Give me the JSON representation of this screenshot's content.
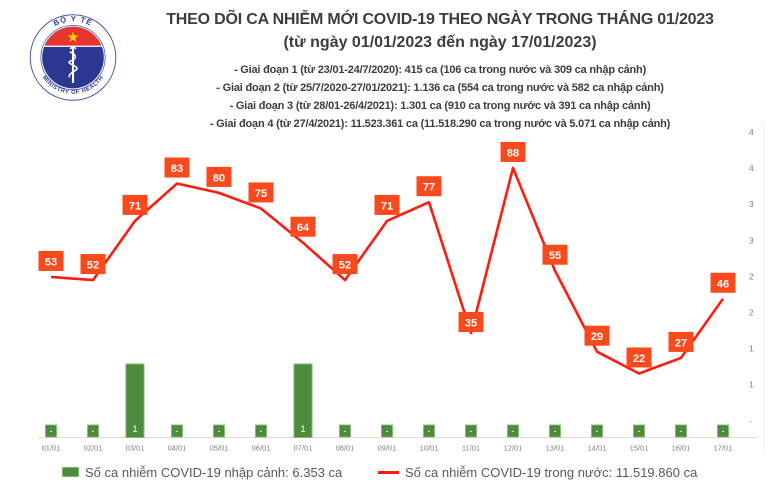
{
  "header": {
    "title": "THEO DÕI CA NHIỄM MỚI COVID-19 THEO NGÀY TRONG THÁNG 01/2023",
    "subtitle": "(từ ngày 01/01/2023 đến ngày 17/01/2023)",
    "phases": [
      "- Giai đoạn 1 (từ 23/01-24/7/2020): 415 ca (106 ca trong nước và 309 ca nhập cảnh)",
      "- Giai đoạn 2 (từ 25/7/2020-27/01/2021): 1.136 ca (554 ca trong nước và 582 ca nhập cảnh)",
      "- Giai đoạn 3 (từ 28/01-26/4/2021): 1.301 ca (910 ca trong nước và 391 ca nhập cảnh)",
      "- Giai đoạn 4 (từ 27/4/2021): 11.523.361 ca (11.518.290 ca trong nước và 5.071 ca nhập cảnh)"
    ],
    "logo": {
      "top_text": "BỘ Y TẾ",
      "bottom_text": "MINISTRY OF HEALTH"
    }
  },
  "chart_data": {
    "type": "line",
    "title": "THEO DÕI CA NHIỄM MỚI COVID-19 THEO NGÀY TRONG THÁNG 01/2023",
    "categories": [
      "01/01",
      "02/01",
      "03/01",
      "04/01",
      "05/01",
      "06/01",
      "07/01",
      "08/01",
      "09/01",
      "10/01",
      "11/01",
      "12/01",
      "13/01",
      "14/01",
      "15/01",
      "16/01",
      "17/01"
    ],
    "series": [
      {
        "name": "Số ca nhiễm COVID-19 trong nước",
        "type": "line",
        "color": "#fe1b12",
        "label_bg": "#f84a1d",
        "values": [
          53,
          52,
          71,
          83,
          80,
          75,
          64,
          52,
          71,
          77,
          35,
          88,
          55,
          29,
          22,
          27,
          46
        ]
      },
      {
        "name": "Số ca nhiễm COVID-19 nhập cảnh",
        "type": "bar",
        "color": "#4e8b3f",
        "border": "#7fb96a",
        "values": [
          0,
          0,
          1,
          0,
          0,
          0,
          1,
          0,
          0,
          0,
          0,
          0,
          0,
          0,
          0,
          0,
          0
        ],
        "labels": [
          "-",
          "-",
          "1",
          "-",
          "-",
          "-",
          "1",
          "-",
          "-",
          "-",
          "-",
          "-",
          "-",
          "-",
          "-",
          "-",
          "-"
        ]
      }
    ],
    "right_axis_tick_labels": [
      "4",
      "4",
      "3",
      "3",
      "2",
      "2",
      "1",
      "1",
      "-"
    ],
    "label_overlap_index": 10,
    "grid": false,
    "legend_position": "bottom",
    "xlabel": "",
    "ylabel": ""
  },
  "legend": {
    "items": [
      {
        "swatch": "bar",
        "color": "#4e8b3f",
        "label": "Số ca nhiễm COVID-19 nhập cảnh: 6.353 ca"
      },
      {
        "swatch": "line",
        "color": "#fe1b12",
        "label": "Số ca nhiễm COVID-19 trong nước: 11.519.860 ca"
      }
    ]
  },
  "colors": {
    "title_text": "#3d3d3d",
    "axis_text": "#7f7f7f",
    "axis_line": "#dcdcdc",
    "line": "#fe1b12",
    "point_label_bg": "#f84a1d",
    "bar": "#4e8b3f",
    "bar_border": "#7fb96a",
    "logo_blue": "#2c3792",
    "logo_red": "#e5352e",
    "logo_star": "#ffd100"
  }
}
